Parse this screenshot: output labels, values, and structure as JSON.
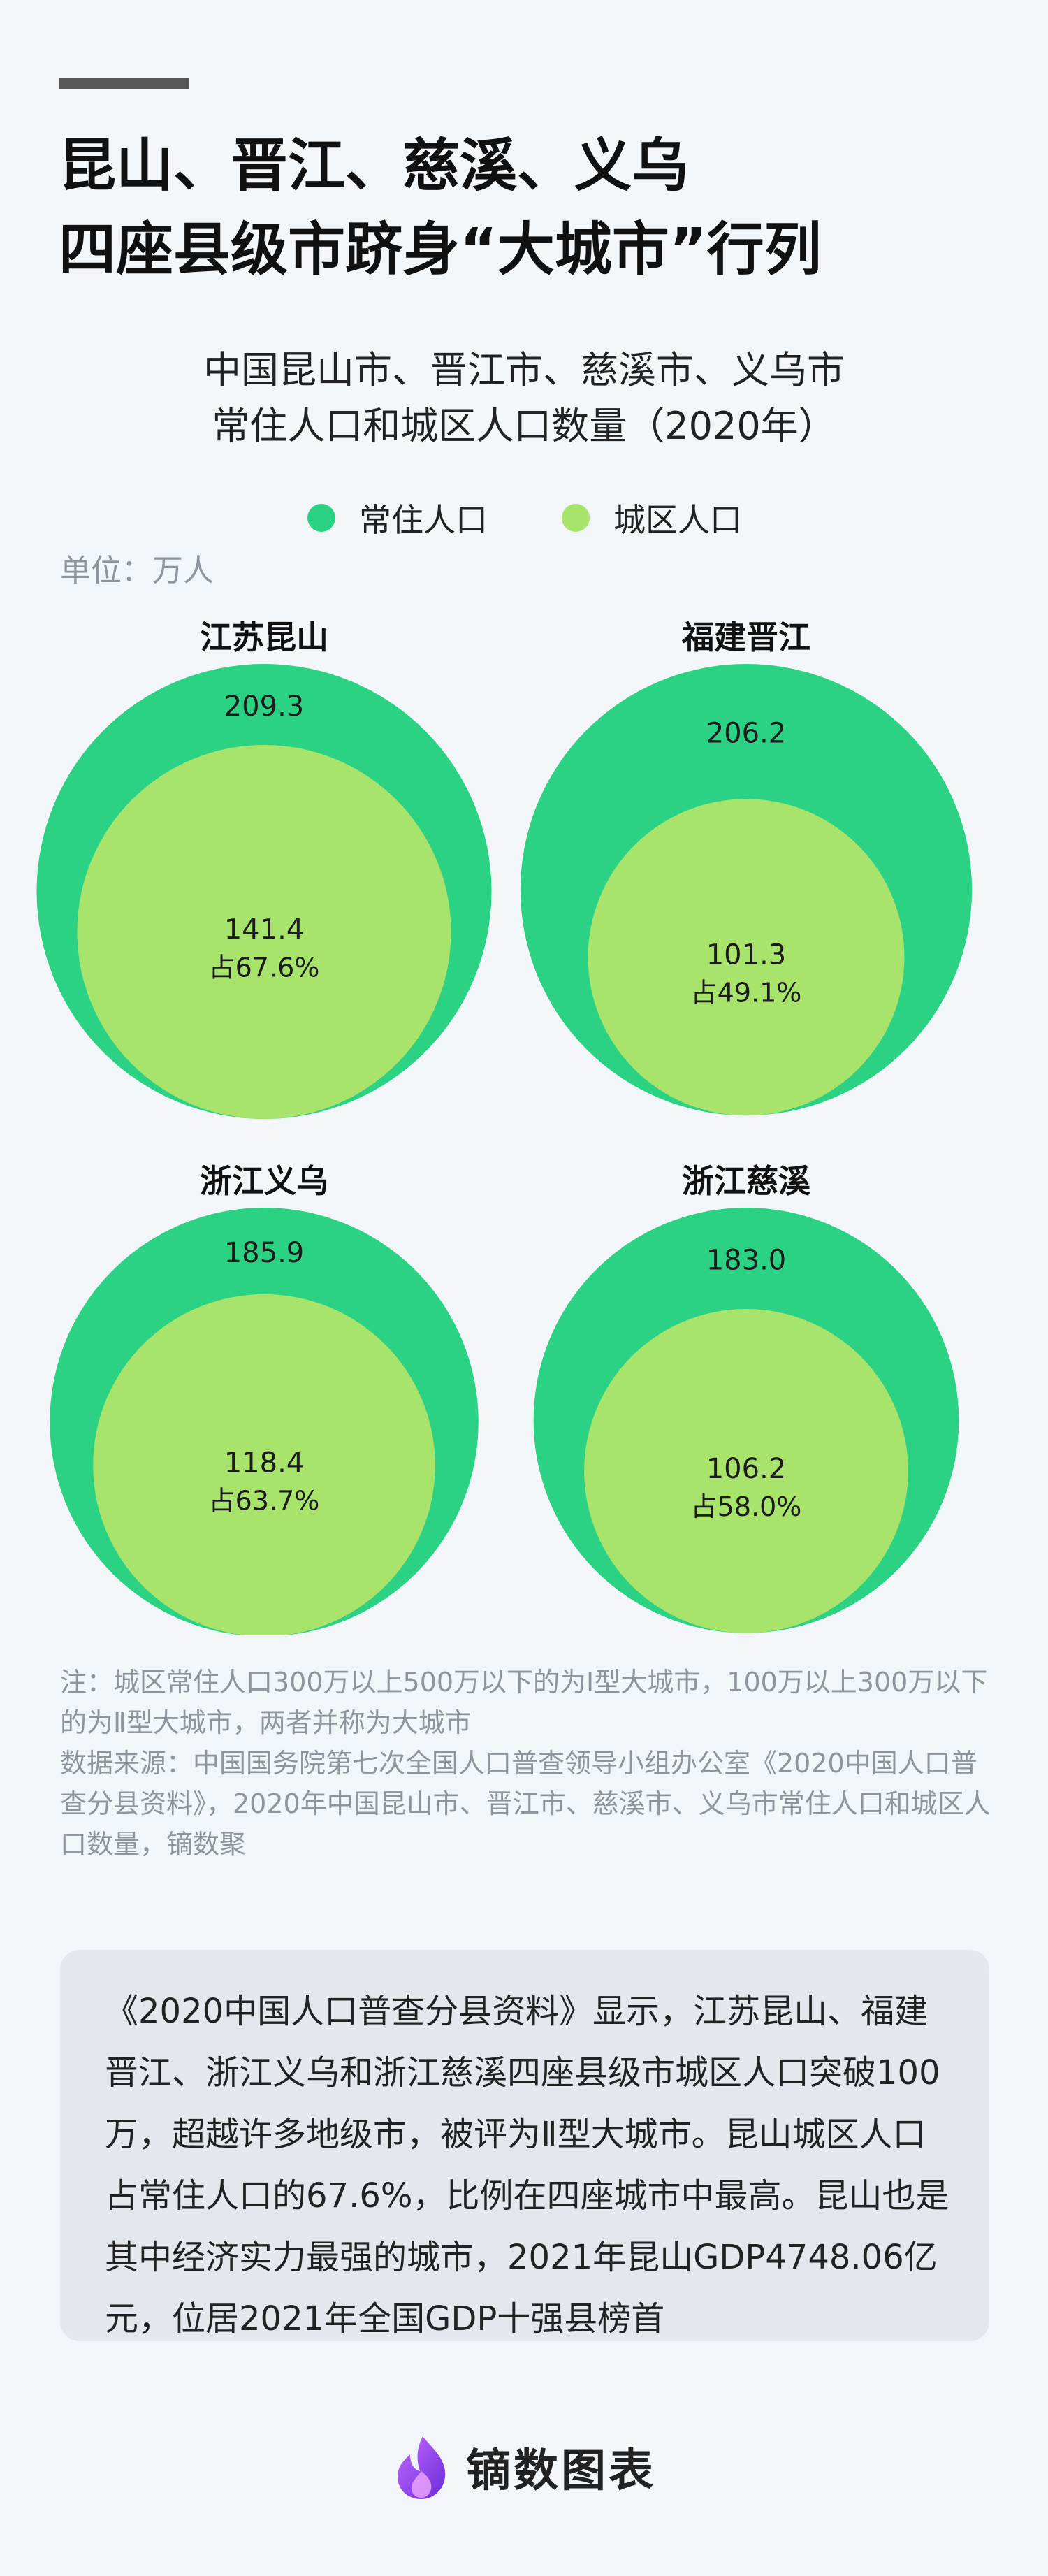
{
  "title_lines": [
    "昆山、晋江、慈溪、义乌",
    "四座县级市跻身“大城市”行列"
  ],
  "chart_data": {
    "type": "nested-circle",
    "title_lines": [
      "中国昆山市、晋江市、慈溪市、义乌市",
      "常住人口和城区人口数量（2020年）"
    ],
    "unit": "单位：万人",
    "legend": [
      {
        "label": "常住人口",
        "color": "#2bd283"
      },
      {
        "label": "城区人口",
        "color": "#a8e36c"
      }
    ],
    "cities": [
      {
        "name": "江苏昆山",
        "resident": "209.3",
        "urban": "141.4",
        "share": "占67.6%"
      },
      {
        "name": "福建晋江",
        "resident": "206.2",
        "urban": "101.3",
        "share": "占49.1%"
      },
      {
        "name": "浙江义乌",
        "resident": "185.9",
        "urban": "118.4",
        "share": "占63.7%"
      },
      {
        "name": "浙江慈溪",
        "resident": "183.0",
        "urban": "106.2",
        "share": "占58.0%"
      }
    ]
  },
  "notes": [
    "注：城区常住人口300万以上500万以下的为Ⅰ型大城市，100万以上300万以下的为Ⅱ型大城市，两者并称为大城市",
    "数据来源：中国国务院第七次全国人口普查领导小组办公室《2020中国人口普查分县资料》，2020年中国昆山市、晋江市、慈溪市、义乌市常住人口和城区人口数量，镝数聚"
  ],
  "summary": "《2020中国人口普查分县资料》显示，江苏昆山、福建晋江、浙江义乌和浙江慈溪四座县级市城区人口突破100万，超越许多地级市，被评为Ⅱ型大城市。昆山城区人口占常住人口的67.6%，比例在四座城市中最高。昆山也是其中经济实力最强的城市，2021年昆山GDP4748.06亿元，位居2021年全国GDP十强县榜首",
  "brand": {
    "name": "镝数图表",
    "icon": "flame-logo-icon"
  }
}
